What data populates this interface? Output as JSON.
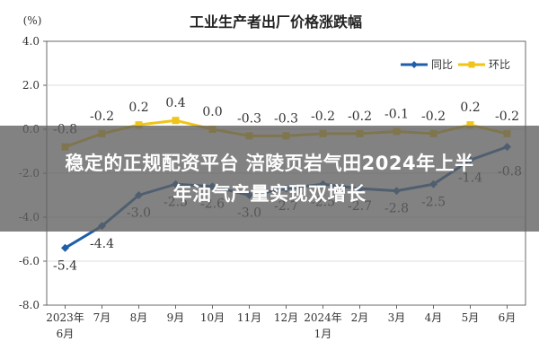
{
  "chart_data": {
    "type": "line",
    "title": "工业生产者出厂价格涨跌幅",
    "ylabel": "(%)",
    "ylim": [
      -8.0,
      4.0
    ],
    "yticks": [
      "4.0",
      "2.0",
      "0.0",
      "-2.0",
      "-4.0",
      "-6.0",
      "-8.0"
    ],
    "categories": [
      [
        "2023年",
        "6月"
      ],
      [
        "7月"
      ],
      [
        "8月"
      ],
      [
        "9月"
      ],
      [
        "10月"
      ],
      [
        "11月"
      ],
      [
        "12月"
      ],
      [
        "2024年",
        "1月"
      ],
      [
        "2月"
      ],
      [
        "3月"
      ],
      [
        "4月"
      ],
      [
        "5月"
      ],
      [
        "6月"
      ]
    ],
    "legend_position": "top-right",
    "series": [
      {
        "name": "同比",
        "color": "#1f5fa8",
        "values": [
          -5.4,
          -4.4,
          -3.0,
          -2.5,
          -2.6,
          -3.0,
          -2.7,
          -2.5,
          -2.7,
          -2.8,
          -2.5,
          -1.4,
          -0.8
        ],
        "labels": [
          "-5.4",
          "-4.4",
          "-3.0",
          "-2.5",
          "-2.6",
          "-3.0",
          "-2.7",
          "-2.5",
          "-2.7",
          "-2.8",
          "-2.5",
          "-1.4",
          "-0.8"
        ]
      },
      {
        "name": "环比",
        "color": "#f0c419",
        "values": [
          -0.8,
          -0.2,
          0.2,
          0.4,
          0.0,
          -0.3,
          -0.3,
          -0.2,
          -0.2,
          -0.1,
          -0.2,
          0.2,
          -0.2
        ],
        "labels": [
          "-0.8",
          "-0.2",
          "0.2",
          "0.4",
          "0.0",
          "-0.3",
          "-0.3",
          "-0.2",
          "-0.2",
          "-0.1",
          "-0.2",
          "0.2",
          "-0.2"
        ]
      }
    ]
  },
  "overlay": {
    "line1": "稳定的正规配资平台 涪陵页岩气田2024年上半",
    "line2": "年油气产量实现双增长"
  }
}
